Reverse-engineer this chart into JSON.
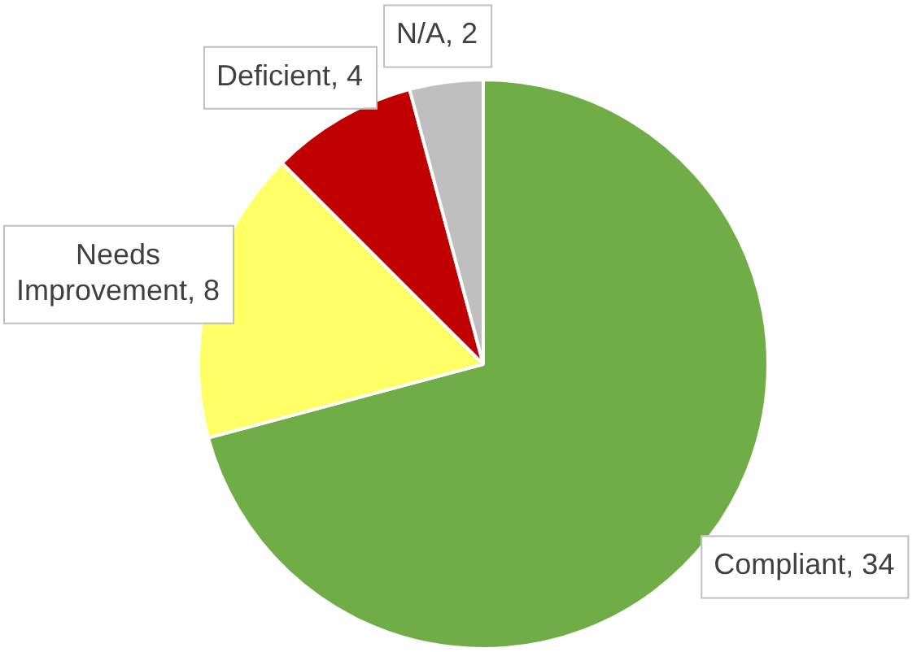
{
  "chart_data": {
    "type": "pie",
    "categories": [
      "Compliant",
      "Needs Improvement",
      "Deficient",
      "N/A"
    ],
    "values": [
      34,
      8,
      4,
      2
    ],
    "value_labels": [
      ", 34",
      ", 8",
      ", 4",
      ", 2"
    ],
    "colors": [
      "#70ad47",
      "#ffff66",
      "#c00000",
      "#bfbfbf"
    ],
    "legend": false
  }
}
